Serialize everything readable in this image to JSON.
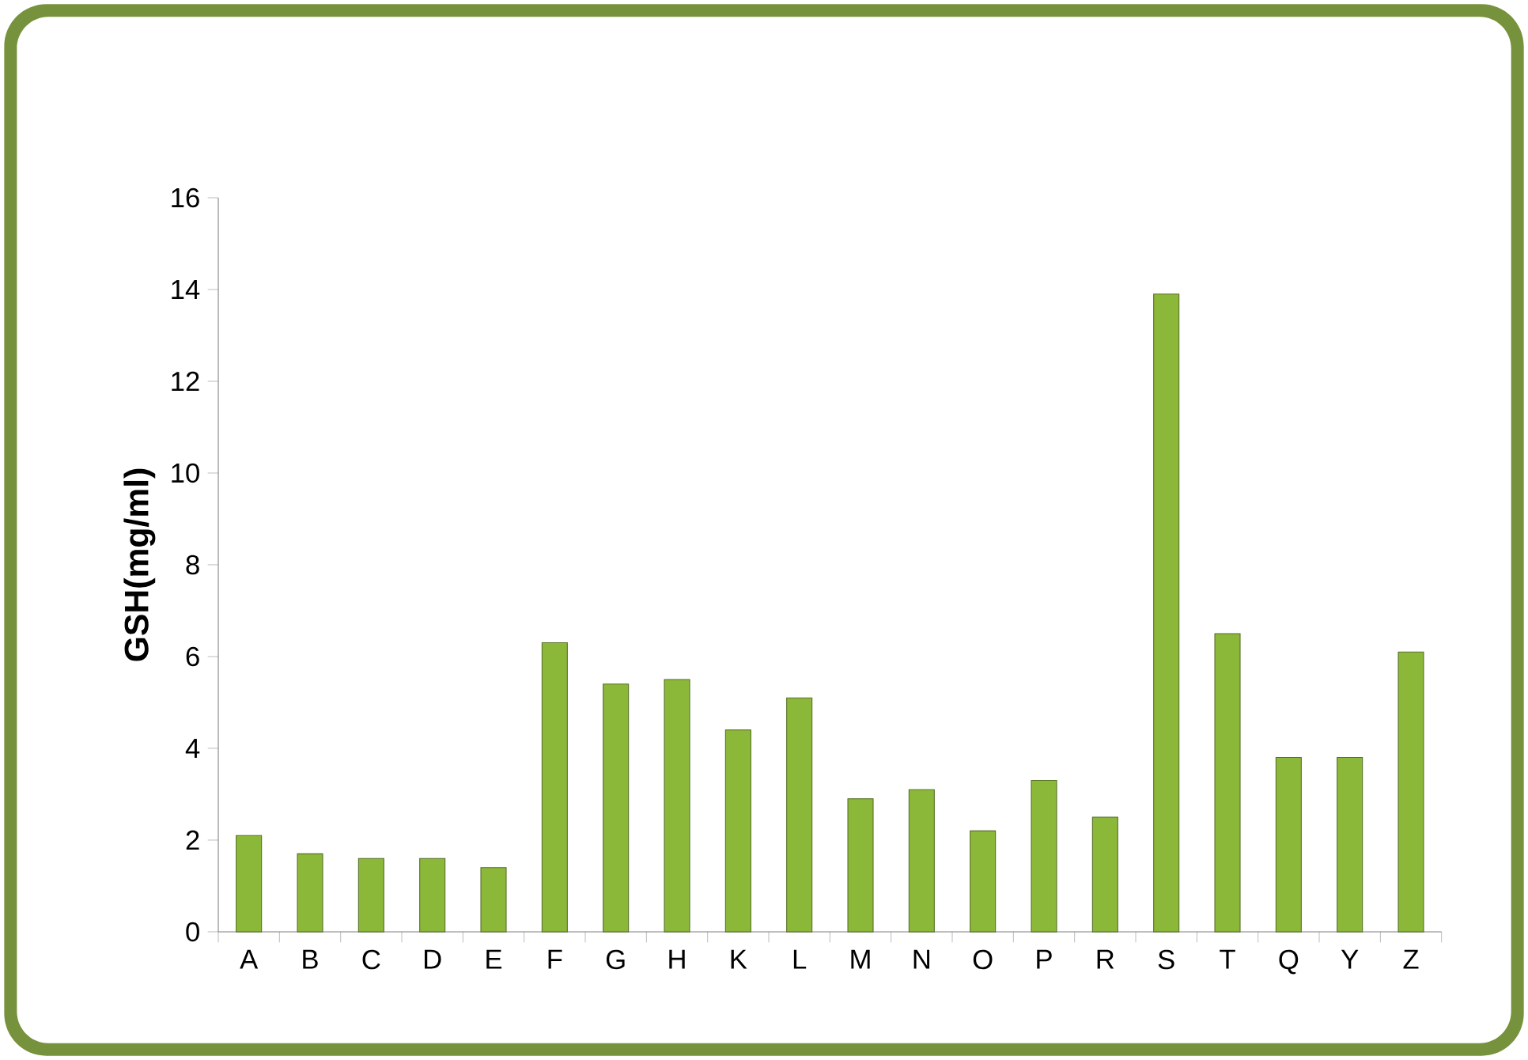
{
  "chart_data": {
    "type": "bar",
    "ylabel": "GSH(mg/ml)",
    "categories": [
      "A",
      "B",
      "C",
      "D",
      "E",
      "F",
      "G",
      "H",
      "K",
      "L",
      "M",
      "N",
      "O",
      "P",
      "R",
      "S",
      "T",
      "Q",
      "Y",
      "Z"
    ],
    "values": [
      2.1,
      1.7,
      1.6,
      1.6,
      1.4,
      6.3,
      5.4,
      5.5,
      4.4,
      5.1,
      2.9,
      3.1,
      2.2,
      3.3,
      2.5,
      13.9,
      6.5,
      3.8,
      3.8,
      6.1
    ],
    "color": "#8cb83a",
    "ylim": [
      0,
      16
    ],
    "yticks": [
      0,
      2,
      4,
      6,
      8,
      10,
      12,
      14,
      16
    ]
  }
}
